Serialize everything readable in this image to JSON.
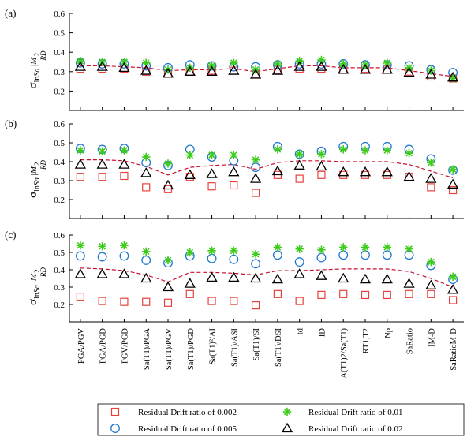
{
  "chart_data": {
    "type": "scatter",
    "ylabel": {
      "sigma": "σ",
      "sub1": "ln",
      "sa": "Sa",
      "sub2": "RD",
      "bar": "|M",
      "sub3": "2"
    },
    "categories": [
      "PGA/PGV",
      "PGA/PGD",
      "PGV/PGD",
      "Sa(T1)/PGA",
      "Sa(T1)/PGV",
      "Sa(T1)/PGD",
      "Sa(T1)²/AI",
      "Sa(T1)/ASI",
      "Sa(T1)/SI",
      "Sa(T1)/DSI",
      "td",
      "ID",
      "A(T1)2/Sa(T1)",
      "RT1,T2",
      "Np",
      "SaRatio",
      "IM-D",
      "SaRatioM-D"
    ],
    "yticks": [
      0.2,
      0.3,
      0.4,
      0.5,
      0.6
    ],
    "ylim": [
      0.1,
      0.6
    ],
    "series_styles": {
      "0.002": {
        "marker": "square",
        "color": "#e8413c"
      },
      "0.005": {
        "marker": "circle",
        "color": "#1f77d0"
      },
      "0.01": {
        "marker": "star",
        "color": "#3dcc1a"
      },
      "0.02": {
        "marker": "triangle",
        "color": "#000000"
      },
      "trend": {
        "line": "dashed",
        "color": "#c8102e"
      }
    },
    "panels": [
      {
        "label": "(a)",
        "series": [
          {
            "key": "0.002",
            "values": [
              0.315,
              0.315,
              0.315,
              0.3,
              0.29,
              0.3,
              0.305,
              0.305,
              0.29,
              0.31,
              0.315,
              0.315,
              0.31,
              0.315,
              0.31,
              0.3,
              0.275,
              0.265
            ]
          },
          {
            "key": "0.005",
            "values": [
              0.345,
              0.34,
              0.34,
              0.33,
              0.32,
              0.335,
              0.33,
              0.325,
              0.325,
              0.335,
              0.34,
              0.34,
              0.34,
              0.335,
              0.335,
              0.33,
              0.31,
              0.295
            ]
          },
          {
            "key": "0.01",
            "values": [
              0.355,
              0.35,
              0.35,
              0.345,
              0.31,
              0.32,
              0.33,
              0.345,
              0.31,
              0.34,
              0.355,
              0.36,
              0.34,
              0.335,
              0.345,
              0.32,
              0.305,
              0.265
            ]
          },
          {
            "key": "0.02",
            "values": [
              0.325,
              0.325,
              0.32,
              0.305,
              0.29,
              0.3,
              0.3,
              0.305,
              0.285,
              0.305,
              0.325,
              0.325,
              0.31,
              0.31,
              0.31,
              0.295,
              0.285,
              0.27
            ]
          }
        ],
        "trend": [
          0.33,
          0.33,
          0.325,
          0.32,
          0.305,
          0.31,
          0.31,
          0.315,
          0.3,
          0.315,
          0.33,
          0.33,
          0.32,
          0.32,
          0.32,
          0.305,
          0.29,
          0.275
        ]
      },
      {
        "label": "(b)",
        "series": [
          {
            "key": "0.002",
            "values": [
              0.32,
              0.32,
              0.325,
              0.265,
              0.255,
              0.32,
              0.27,
              0.275,
              0.235,
              0.33,
              0.31,
              0.33,
              0.33,
              0.33,
              0.33,
              0.32,
              0.265,
              0.25
            ]
          },
          {
            "key": "0.005",
            "values": [
              0.47,
              0.465,
              0.47,
              0.395,
              0.38,
              0.465,
              0.425,
              0.405,
              0.37,
              0.48,
              0.44,
              0.455,
              0.48,
              0.48,
              0.48,
              0.465,
              0.415,
              0.355
            ]
          },
          {
            "key": "0.01",
            "values": [
              0.46,
              0.455,
              0.46,
              0.425,
              0.39,
              0.435,
              0.435,
              0.435,
              0.41,
              0.465,
              0.44,
              0.44,
              0.465,
              0.46,
              0.46,
              0.445,
              0.395,
              0.36
            ]
          },
          {
            "key": "0.02",
            "values": [
              0.385,
              0.385,
              0.385,
              0.34,
              0.275,
              0.33,
              0.335,
              0.345,
              0.31,
              0.35,
              0.38,
              0.375,
              0.345,
              0.345,
              0.345,
              0.32,
              0.31,
              0.28
            ]
          }
        ],
        "trend": [
          0.41,
          0.41,
          0.405,
          0.375,
          0.33,
          0.37,
          0.38,
          0.385,
          0.36,
          0.395,
          0.405,
          0.405,
          0.4,
          0.4,
          0.4,
          0.385,
          0.35,
          0.315
        ]
      },
      {
        "label": "(c)",
        "series": [
          {
            "key": "0.002",
            "values": [
              0.245,
              0.22,
              0.215,
              0.215,
              0.21,
              0.26,
              0.22,
              0.22,
              0.195,
              0.26,
              0.22,
              0.255,
              0.26,
              0.255,
              0.255,
              0.26,
              0.26,
              0.225
            ]
          },
          {
            "key": "0.005",
            "values": [
              0.48,
              0.475,
              0.48,
              0.455,
              0.44,
              0.48,
              0.465,
              0.46,
              0.435,
              0.485,
              0.445,
              0.47,
              0.485,
              0.485,
              0.485,
              0.485,
              0.425,
              0.345
            ]
          },
          {
            "key": "0.01",
            "values": [
              0.54,
              0.535,
              0.54,
              0.505,
              0.455,
              0.5,
              0.51,
              0.51,
              0.49,
              0.53,
              0.52,
              0.515,
              0.53,
              0.53,
              0.53,
              0.52,
              0.445,
              0.36
            ]
          },
          {
            "key": "0.02",
            "values": [
              0.375,
              0.375,
              0.375,
              0.35,
              0.3,
              0.32,
              0.355,
              0.355,
              0.35,
              0.345,
              0.375,
              0.365,
              0.35,
              0.345,
              0.345,
              0.32,
              0.31,
              0.285
            ]
          }
        ],
        "trend": [
          0.41,
          0.405,
          0.395,
          0.37,
          0.33,
          0.385,
          0.385,
          0.38,
          0.37,
          0.395,
          0.395,
          0.4,
          0.405,
          0.405,
          0.405,
          0.39,
          0.35,
          0.3
        ]
      }
    ],
    "legend": {
      "placement": "bottom",
      "items": [
        {
          "key": "0.002",
          "label": "Residual Drift ratio of 0.002"
        },
        {
          "key": "0.01",
          "label": "Residual Drift ratio of 0.01"
        },
        {
          "key": "0.005",
          "label": "Residual Drift ratio of 0.005"
        },
        {
          "key": "0.02",
          "label": "Residual Drift ratio of 0.02"
        }
      ]
    }
  }
}
